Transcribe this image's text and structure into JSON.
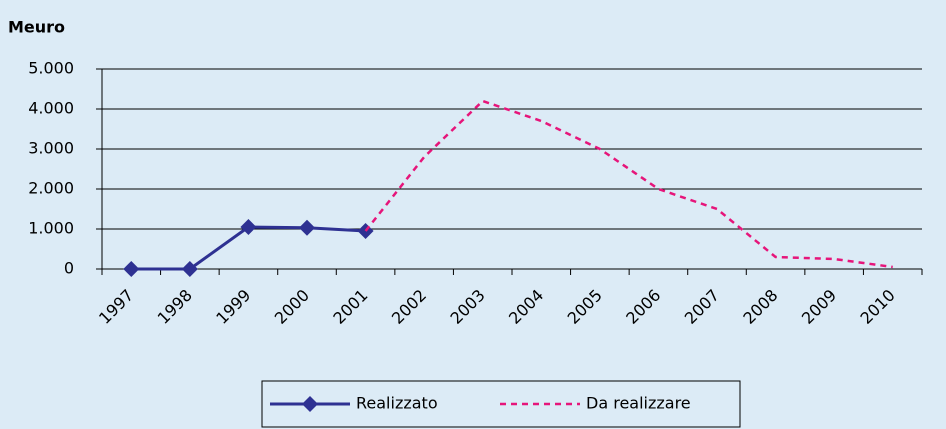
{
  "chart_data": {
    "type": "line",
    "title": "Meuro",
    "categories": [
      "1997",
      "1998",
      "1999",
      "2000",
      "2001",
      "2002",
      "2003",
      "2004",
      "2005",
      "2006",
      "2007",
      "2008",
      "2009",
      "2010"
    ],
    "series": [
      {
        "name": "Realizzato",
        "color": "#2e3192",
        "style": "solid",
        "marker": "diamond",
        "values": [
          0,
          0,
          1050,
          1030,
          950,
          null,
          null,
          null,
          null,
          null,
          null,
          null,
          null,
          null
        ]
      },
      {
        "name": "Da realizzare",
        "color": "#e6157a",
        "style": "dashed",
        "values": [
          null,
          null,
          null,
          null,
          950,
          2800,
          4200,
          3700,
          3000,
          2000,
          1500,
          300,
          250,
          50
        ]
      }
    ],
    "ylim": [
      0,
      5000
    ],
    "yticks": [
      0,
      {
        "value": 1000,
        "label": "1.000"
      },
      {
        "value": 2000,
        "label": "2.000"
      },
      {
        "value": 3000,
        "label": "3.000"
      },
      {
        "value": 4000,
        "label": "4.000"
      },
      {
        "value": 5000,
        "label": "5.000"
      }
    ],
    "grid": true
  }
}
